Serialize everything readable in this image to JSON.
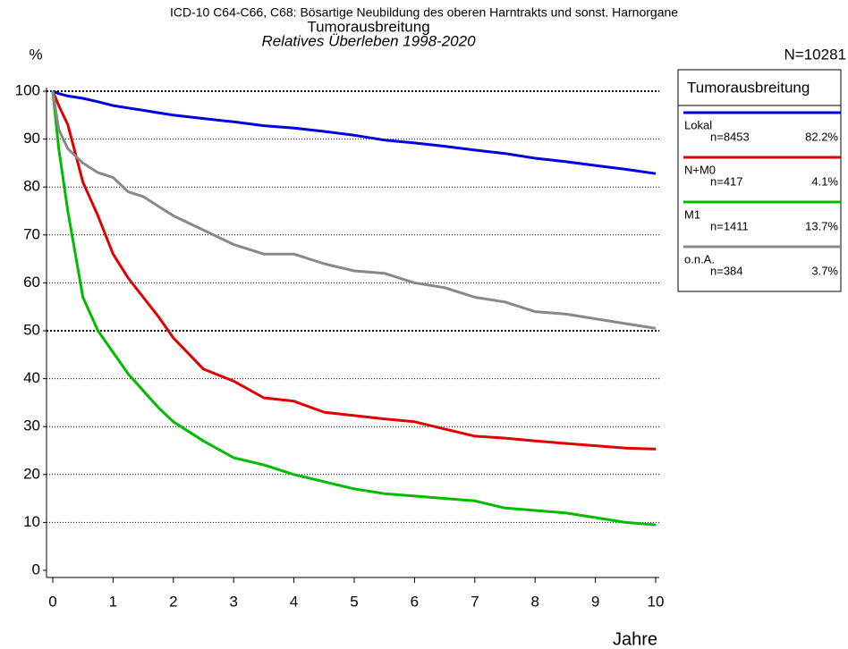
{
  "chart_data": {
    "type": "line",
    "title": "ICD-10 C64-C66, C68: Bösartige Neubildung des oberen Harntrakts und sonst. Harnorgane",
    "subtitle": "Tumorausbreitung",
    "subtitle2": "Relatives Überleben 1998-2020",
    "y_label": "%",
    "x_label": "Jahre",
    "total": "N=10281",
    "legend_title": "Tumorausbreitung",
    "x": [
      0,
      0.1,
      0.25,
      0.5,
      0.75,
      1,
      1.25,
      1.5,
      1.75,
      2,
      2.5,
      3,
      3.5,
      4,
      4.5,
      5,
      5.5,
      6,
      6.5,
      7,
      7.5,
      8,
      8.5,
      9,
      9.5,
      10
    ],
    "series": [
      {
        "name": "Lokal",
        "n": "n=8453",
        "share": "82.2%",
        "color": "#0000dd",
        "values": [
          100,
          99.5,
          99,
          98.5,
          97.8,
          97,
          96.5,
          96,
          95.5,
          95,
          94.3,
          93.6,
          92.8,
          92.3,
          91.6,
          90.8,
          89.8,
          89.2,
          88.5,
          87.7,
          87,
          86,
          85.3,
          84.5,
          83.7,
          82.8
        ]
      },
      {
        "name": "N+M0",
        "n": "n=417",
        "share": "4.1%",
        "color": "#e00000",
        "values": [
          100,
          97,
          93,
          81,
          74,
          66,
          61,
          57,
          53,
          48.5,
          42,
          39.5,
          36,
          35.3,
          33,
          32.3,
          31.6,
          31,
          29.5,
          28,
          27.6,
          27,
          26.5,
          26,
          25.5,
          25.3
        ]
      },
      {
        "name": "M1",
        "n": "n=1411",
        "share": "13.7%",
        "color": "#00bb00",
        "values": [
          100,
          88,
          75,
          57,
          50,
          45.5,
          41,
          37.5,
          34,
          31,
          27,
          23.5,
          22,
          20,
          18.5,
          17,
          16,
          15.5,
          15,
          14.5,
          13,
          12.5,
          12,
          11,
          10,
          9.5
        ]
      },
      {
        "name": "o.n.A.",
        "n": "n=384",
        "share": "3.7%",
        "color": "#888888",
        "values": [
          100,
          92,
          88,
          85,
          83,
          82,
          79,
          78,
          76,
          74,
          71,
          68,
          66,
          66,
          64,
          62.5,
          62,
          60,
          59,
          57,
          56,
          54,
          53.5,
          52.5,
          51.5,
          50.5
        ]
      }
    ],
    "xlim": [
      0,
      10
    ],
    "xticks": [
      0,
      1,
      2,
      3,
      4,
      5,
      6,
      7,
      8,
      9,
      10
    ],
    "ylim": [
      0,
      100
    ],
    "yticks": [
      0,
      10,
      20,
      30,
      40,
      50,
      60,
      70,
      80,
      90,
      100
    ],
    "grid": true
  }
}
